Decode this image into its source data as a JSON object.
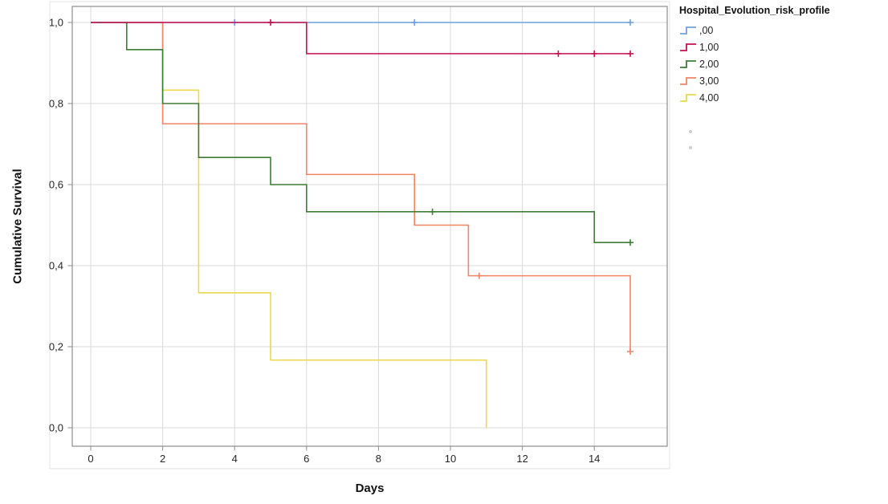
{
  "chart_data": {
    "type": "line",
    "chart_style": "kaplan-meier-step",
    "title": "",
    "xlabel": "Days",
    "ylabel": "Cumulative Survival",
    "legend_title": "Hospital_Evolution_risk_profile",
    "legend_position": "right-top",
    "grid": true,
    "grid_color": "#d9d9d9",
    "axis_color": "#8c8c8c",
    "text_color": "#262626",
    "xlim": [
      -0.5,
      16
    ],
    "ylim": [
      -0.05,
      1.04
    ],
    "x_ticks": [
      {
        "value": 0,
        "label": "0"
      },
      {
        "value": 2,
        "label": "2"
      },
      {
        "value": 4,
        "label": "4"
      },
      {
        "value": 6,
        "label": "6"
      },
      {
        "value": 8,
        "label": "8"
      },
      {
        "value": 10,
        "label": "10"
      },
      {
        "value": 12,
        "label": "12"
      },
      {
        "value": 14,
        "label": "14"
      }
    ],
    "y_ticks": [
      {
        "value": 0.0,
        "label": "0,0"
      },
      {
        "value": 0.2,
        "label": "0,2"
      },
      {
        "value": 0.4,
        "label": "0,4"
      },
      {
        "value": 0.6,
        "label": "0,6"
      },
      {
        "value": 0.8,
        "label": "0,8"
      },
      {
        "value": 1.0,
        "label": "1,0"
      }
    ],
    "draw_order": [
      4,
      3,
      2,
      0,
      1
    ],
    "series": [
      {
        "name": ",00",
        "color": "#6FA0DC",
        "points": [
          [
            0,
            1.0
          ],
          [
            15,
            1.0
          ]
        ],
        "censored": [
          [
            4,
            1.0
          ],
          [
            9,
            1.0
          ],
          [
            15,
            1.0
          ]
        ]
      },
      {
        "name": "1,00",
        "color": "#C8104E",
        "points": [
          [
            0,
            1.0
          ],
          [
            6,
            0.923
          ],
          [
            15,
            0.923
          ]
        ],
        "censored": [
          [
            5,
            1.0
          ],
          [
            13,
            0.923
          ],
          [
            14,
            0.923
          ],
          [
            15,
            0.923
          ]
        ]
      },
      {
        "name": "2,00",
        "color": "#3D7D35",
        "points": [
          [
            0,
            1.0
          ],
          [
            1,
            0.933
          ],
          [
            2,
            0.8
          ],
          [
            3,
            0.667
          ],
          [
            5,
            0.6
          ],
          [
            6,
            0.533
          ],
          [
            14,
            0.457
          ],
          [
            15,
            0.457
          ]
        ],
        "censored": [
          [
            9.5,
            0.533
          ],
          [
            15,
            0.457
          ]
        ]
      },
      {
        "name": "3,00",
        "color": "#F08566",
        "points": [
          [
            0,
            1.0
          ],
          [
            2,
            0.75
          ],
          [
            6,
            0.625
          ],
          [
            9,
            0.5
          ],
          [
            10.5,
            0.375
          ],
          [
            15,
            0.188
          ]
        ],
        "censored": [
          [
            10.8,
            0.375
          ],
          [
            15,
            0.188
          ]
        ]
      },
      {
        "name": "4,00",
        "color": "#EAD94F",
        "points": [
          [
            0,
            1.0
          ],
          [
            2,
            0.833
          ],
          [
            3,
            0.333
          ],
          [
            5,
            0.167
          ],
          [
            11,
            0.0
          ]
        ],
        "censored": []
      }
    ]
  }
}
